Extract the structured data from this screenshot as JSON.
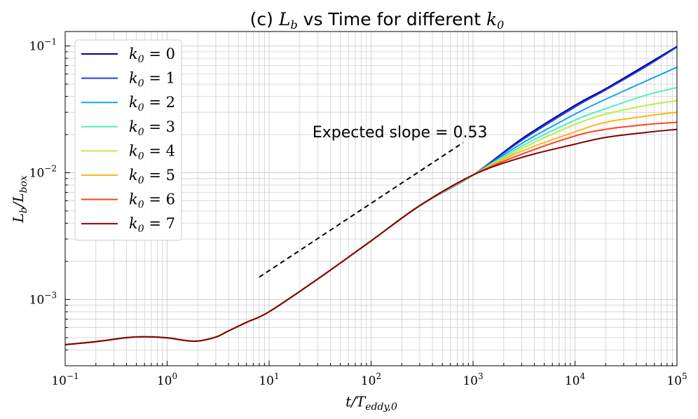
{
  "chart_data": {
    "type": "line",
    "title": "(c) L_b vs Time for different k_0",
    "title_prefix": "(c) ",
    "title_sym": "L",
    "title_sym_sub": "b",
    "title_mid": " vs Time for different ",
    "title_tail_sym": "k",
    "title_tail_sub": "0",
    "xlabel": "t/T_eddy,0",
    "xlabel_main": "t/T",
    "xlabel_sub": "eddy,0",
    "ylabel": "L_b/L_box",
    "ylabel_a": "L",
    "ylabel_a_sub": "b",
    "ylabel_b": "/L",
    "ylabel_b_sub": "box",
    "xscale": "log",
    "yscale": "log",
    "xlim": [
      0.1,
      100000
    ],
    "ylim": [
      0.0003,
      0.13
    ],
    "x_ticks": [
      {
        "base": "10",
        "exp": "−1"
      },
      {
        "base": "10",
        "exp": "0"
      },
      {
        "base": "10",
        "exp": "1"
      },
      {
        "base": "10",
        "exp": "2"
      },
      {
        "base": "10",
        "exp": "3"
      },
      {
        "base": "10",
        "exp": "4"
      },
      {
        "base": "10",
        "exp": "5"
      }
    ],
    "y_ticks": [
      {
        "base": "10",
        "exp": "−3"
      },
      {
        "base": "10",
        "exp": "−2"
      },
      {
        "base": "10",
        "exp": "−1"
      }
    ],
    "grid": true,
    "legend_position": "upper-left",
    "shared_x": [
      0.1,
      0.2,
      0.4,
      0.6,
      1,
      1.5,
      2,
      3,
      4,
      6,
      10,
      30,
      100,
      300,
      1000
    ],
    "shared_y": [
      0.00044,
      0.000465,
      0.0005,
      0.000508,
      0.000498,
      0.000475,
      0.00047,
      0.000505,
      0.000565,
      0.00066,
      0.0008,
      0.00145,
      0.0029,
      0.0055,
      0.0096
    ],
    "series": [
      {
        "name": "k_0 = 0",
        "label_sym": "k",
        "label_sub": "0",
        "label_val": " = 0",
        "color": "#00008b",
        "x_tail": [
          3000,
          10000,
          20000,
          50000,
          100000
        ],
        "y_tail": [
          0.0185,
          0.034,
          0.046,
          0.071,
          0.099
        ]
      },
      {
        "name": "k_0 = 1",
        "label_sym": "k",
        "label_sub": "0",
        "label_val": " = 1",
        "color": "#1f3fe8",
        "x_tail": [
          3000,
          10000,
          20000,
          50000,
          100000
        ],
        "y_tail": [
          0.018,
          0.033,
          0.045,
          0.069,
          0.098
        ]
      },
      {
        "name": "k_0 = 2",
        "label_sym": "k",
        "label_sub": "0",
        "label_val": " = 2",
        "color": "#12a3f0",
        "x_tail": [
          3000,
          10000,
          20000,
          50000,
          100000
        ],
        "y_tail": [
          0.017,
          0.029,
          0.038,
          0.053,
          0.068
        ]
      },
      {
        "name": "k_0 = 3",
        "label_sym": "k",
        "label_sub": "0",
        "label_val": " = 3",
        "color": "#4ff0c0",
        "x_tail": [
          3000,
          10000,
          20000,
          50000,
          100000
        ],
        "y_tail": [
          0.0162,
          0.026,
          0.032,
          0.041,
          0.047
        ]
      },
      {
        "name": "k_0 = 4",
        "label_sym": "k",
        "label_sub": "0",
        "label_val": " = 4",
        "color": "#b5f04a",
        "x_tail": [
          3000,
          10000,
          20000,
          50000,
          100000
        ],
        "y_tail": [
          0.0155,
          0.024,
          0.029,
          0.034,
          0.037
        ]
      },
      {
        "name": "k_0 = 5",
        "label_sym": "k",
        "label_sub": "0",
        "label_val": " = 5",
        "color": "#ffb420",
        "x_tail": [
          3000,
          10000,
          20000,
          50000,
          100000
        ],
        "y_tail": [
          0.0148,
          0.021,
          0.025,
          0.028,
          0.03
        ]
      },
      {
        "name": "k_0 = 6",
        "label_sym": "k",
        "label_sub": "0",
        "label_val": " = 6",
        "color": "#ff4020",
        "x_tail": [
          3000,
          10000,
          20000,
          50000,
          100000
        ],
        "y_tail": [
          0.014,
          0.0195,
          0.022,
          0.024,
          0.025
        ]
      },
      {
        "name": "k_0 = 7",
        "label_sym": "k",
        "label_sub": "0",
        "label_val": " = 7",
        "color": "#800000",
        "x_tail": [
          3000,
          10000,
          20000,
          50000,
          100000
        ],
        "y_tail": [
          0.0132,
          0.0168,
          0.019,
          0.0208,
          0.022
        ]
      }
    ],
    "reference_line": {
      "label": "Expected slope = 0.53",
      "slope": 0.53,
      "x": [
        8,
        800
      ],
      "y": [
        0.0015,
        0.0173
      ],
      "color": "#000000",
      "style": "dashed"
    },
    "annotation": {
      "text": "Expected slope = 0.53",
      "x": 25,
      "y": 0.021
    }
  }
}
